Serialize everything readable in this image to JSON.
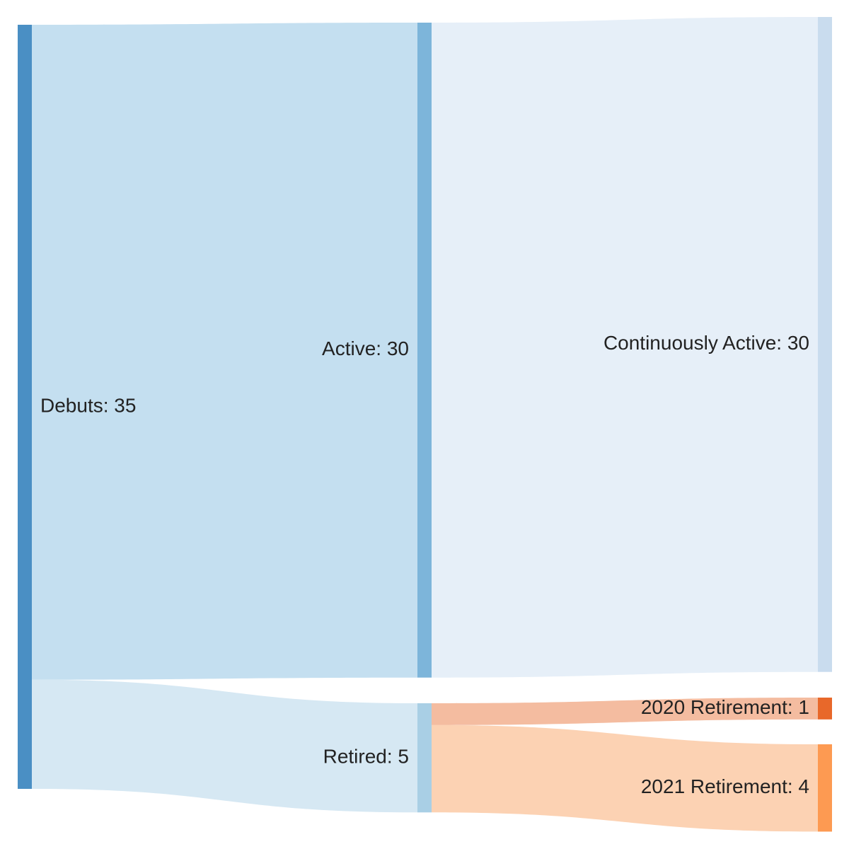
{
  "chart_data": {
    "type": "sankey",
    "nodes": [
      {
        "id": "debuts",
        "label": "Debuts: 35",
        "value": 35,
        "color": "#4a8fc4"
      },
      {
        "id": "active",
        "label": "Active: 30",
        "value": 30,
        "color": "#7db5da"
      },
      {
        "id": "retired",
        "label": "Retired: 5",
        "value": 5,
        "color": "#a9cfe5"
      },
      {
        "id": "continuously_active",
        "label": "Continuously Active: 30",
        "value": 30,
        "color": "#c9dcee"
      },
      {
        "id": "retirement_2020",
        "label": "2020 Retirement: 1",
        "value": 1,
        "color": "#e8682a"
      },
      {
        "id": "retirement_2021",
        "label": "2021 Retirement: 4",
        "value": 4,
        "color": "#fd9a52"
      }
    ],
    "links": [
      {
        "source": "debuts",
        "target": "active",
        "value": 30,
        "color": "#c4dff0"
      },
      {
        "source": "debuts",
        "target": "retired",
        "value": 5,
        "color": "#d6e8f3"
      },
      {
        "source": "active",
        "target": "continuously_active",
        "value": 30,
        "color": "#e6eff8"
      },
      {
        "source": "retired",
        "target": "retirement_2020",
        "value": 1,
        "color": "#f4bca0"
      },
      {
        "source": "retired",
        "target": "retirement_2021",
        "value": 4,
        "color": "#fcd2b3"
      }
    ]
  }
}
